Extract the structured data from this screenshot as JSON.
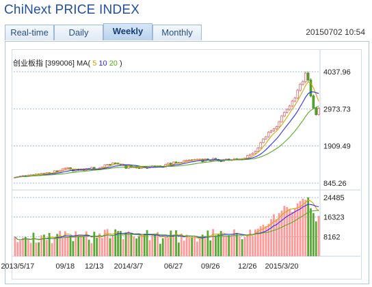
{
  "page": {
    "title": "ChiNext PRICE INDEX",
    "timestamp": "20150702 10:54",
    "tabs": [
      {
        "label": "Real-time",
        "active": false
      },
      {
        "label": "Daily",
        "active": false
      },
      {
        "label": "Weekly",
        "active": true
      },
      {
        "label": "Monthly",
        "active": false
      }
    ]
  },
  "chart_data": {
    "type": "candlestick",
    "header": {
      "name": "创业板指",
      "code": "[399006]",
      "ma_label": "MA(",
      "ma5": "5",
      "ma10": "10",
      "ma20": "20",
      "close_paren": ")"
    },
    "colors": {
      "up": "#ff9999",
      "down": "#55a830",
      "ma5": "#d8a300",
      "ma10": "#2a2aff",
      "ma20": "#55aa22"
    },
    "price_axis": {
      "ticks": [
        "4037.96",
        "2973.73",
        "1909.49",
        "845.26"
      ],
      "ylim": [
        845.26,
        4037.96
      ]
    },
    "volume_axis": {
      "ticks": [
        "24485",
        "16323",
        "8162"
      ],
      "ylim": [
        0,
        24485
      ]
    },
    "x_ticks": [
      "2013/5/17",
      "09/18",
      "12/13",
      "2014/3/7",
      "06/27",
      "09/26",
      "12/26",
      "2015/3/20"
    ],
    "x_tick_index": [
      1,
      19,
      30,
      43,
      60,
      74,
      88,
      101
    ],
    "closes": [
      1010,
      1026,
      1047,
      1061,
      1037,
      1077,
      1084,
      1076,
      1106,
      1095,
      1124,
      1115,
      1143,
      1134,
      1137,
      1198,
      1172,
      1212,
      1256,
      1275,
      1286,
      1238,
      1192,
      1249,
      1212,
      1250,
      1210,
      1264,
      1237,
      1296,
      1252,
      1239,
      1280,
      1307,
      1369,
      1381,
      1373,
      1422,
      1417,
      1389,
      1369,
      1369,
      1271,
      1355,
      1296,
      1306,
      1283,
      1272,
      1306,
      1285,
      1283,
      1301,
      1339,
      1327,
      1339,
      1317,
      1313,
      1386,
      1417,
      1372,
      1451,
      1434,
      1430,
      1440,
      1494,
      1500,
      1511,
      1505,
      1523,
      1529,
      1531,
      1461,
      1538,
      1507,
      1496,
      1554,
      1523,
      1480,
      1472,
      1517,
      1535,
      1503,
      1512,
      1544,
      1521,
      1541,
      1534,
      1563,
      1634,
      1669,
      1705,
      1757,
      1855,
      2006,
      2110,
      2174,
      2308,
      2342,
      2399,
      2460,
      2605,
      2768,
      2874,
      2958,
      3058,
      3196,
      3282,
      3507,
      3679,
      3751,
      3998,
      3802,
      3346,
      3001,
      2811,
      2990
    ],
    "volumes": [
      8100,
      5900,
      6500,
      7700,
      8000,
      7200,
      5600,
      9800,
      5700,
      5800,
      8700,
      9000,
      6800,
      9700,
      5500,
      8100,
      9300,
      10600,
      7400,
      10400,
      8600,
      8500,
      6300,
      10400,
      8500,
      8400,
      8600,
      10400,
      6900,
      5500,
      10200,
      7700,
      9500,
      7600,
      11000,
      11300,
      7500,
      8200,
      11200,
      10500,
      10500,
      7100,
      10000,
      10400,
      9500,
      8300,
      7400,
      8400,
      9100,
      9200,
      10900,
      6700,
      9400,
      8900,
      10100,
      5200,
      7500,
      8100,
      7500,
      10700,
      9100,
      10800,
      5700,
      9400,
      6500,
      9000,
      7400,
      7700,
      8200,
      6100,
      7300,
      9000,
      8500,
      10700,
      6600,
      11300,
      8700,
      9200,
      10500,
      8500,
      8600,
      8800,
      8800,
      11200,
      9700,
      8400,
      7100,
      8000,
      9100,
      11100,
      8500,
      11200,
      11500,
      12500,
      13100,
      12500,
      13500,
      15500,
      17500,
      15500,
      18000,
      19000,
      21000,
      20500,
      19500,
      18500,
      20000,
      22000,
      23000,
      24000,
      23500,
      24500,
      20000,
      18000,
      14500,
      16800
    ]
  }
}
